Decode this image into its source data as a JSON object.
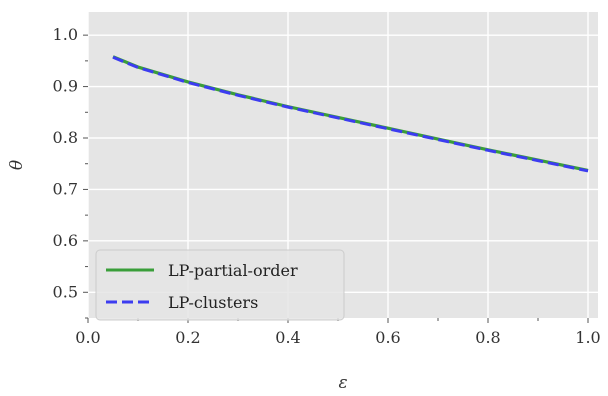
{
  "chart_data": {
    "type": "line",
    "xlabel": "ε",
    "ylabel": "θ",
    "xlim": [
      0.0,
      1.02
    ],
    "ylim": [
      0.45,
      1.045
    ],
    "xticks": [
      0.0,
      0.2,
      0.4,
      0.6,
      0.8,
      1.0
    ],
    "xtick_labels": [
      "0.0",
      "0.2",
      "0.4",
      "0.6",
      "0.8",
      "1.0"
    ],
    "yticks": [
      0.5,
      0.6,
      0.7,
      0.8,
      0.9,
      1.0
    ],
    "ytick_labels": [
      "0.5",
      "0.6",
      "0.7",
      "0.8",
      "0.9",
      "1.0"
    ],
    "grid": true,
    "legend_position": "lower-left",
    "x": [
      0.05,
      0.1,
      0.2,
      0.3,
      0.4,
      0.5,
      0.6,
      0.7,
      0.8,
      0.9,
      1.0
    ],
    "series": [
      {
        "name": "LP-partial-order",
        "color": "#3a9e3a",
        "style": "solid",
        "values": [
          0.958,
          0.938,
          0.909,
          0.884,
          0.861,
          0.84,
          0.819,
          0.798,
          0.777,
          0.757,
          0.737
        ]
      },
      {
        "name": "LP-clusters",
        "color": "#3c3cf0",
        "style": "dashed",
        "values": [
          0.957,
          0.937,
          0.908,
          0.883,
          0.86,
          0.839,
          0.818,
          0.797,
          0.776,
          0.756,
          0.736
        ]
      }
    ]
  }
}
